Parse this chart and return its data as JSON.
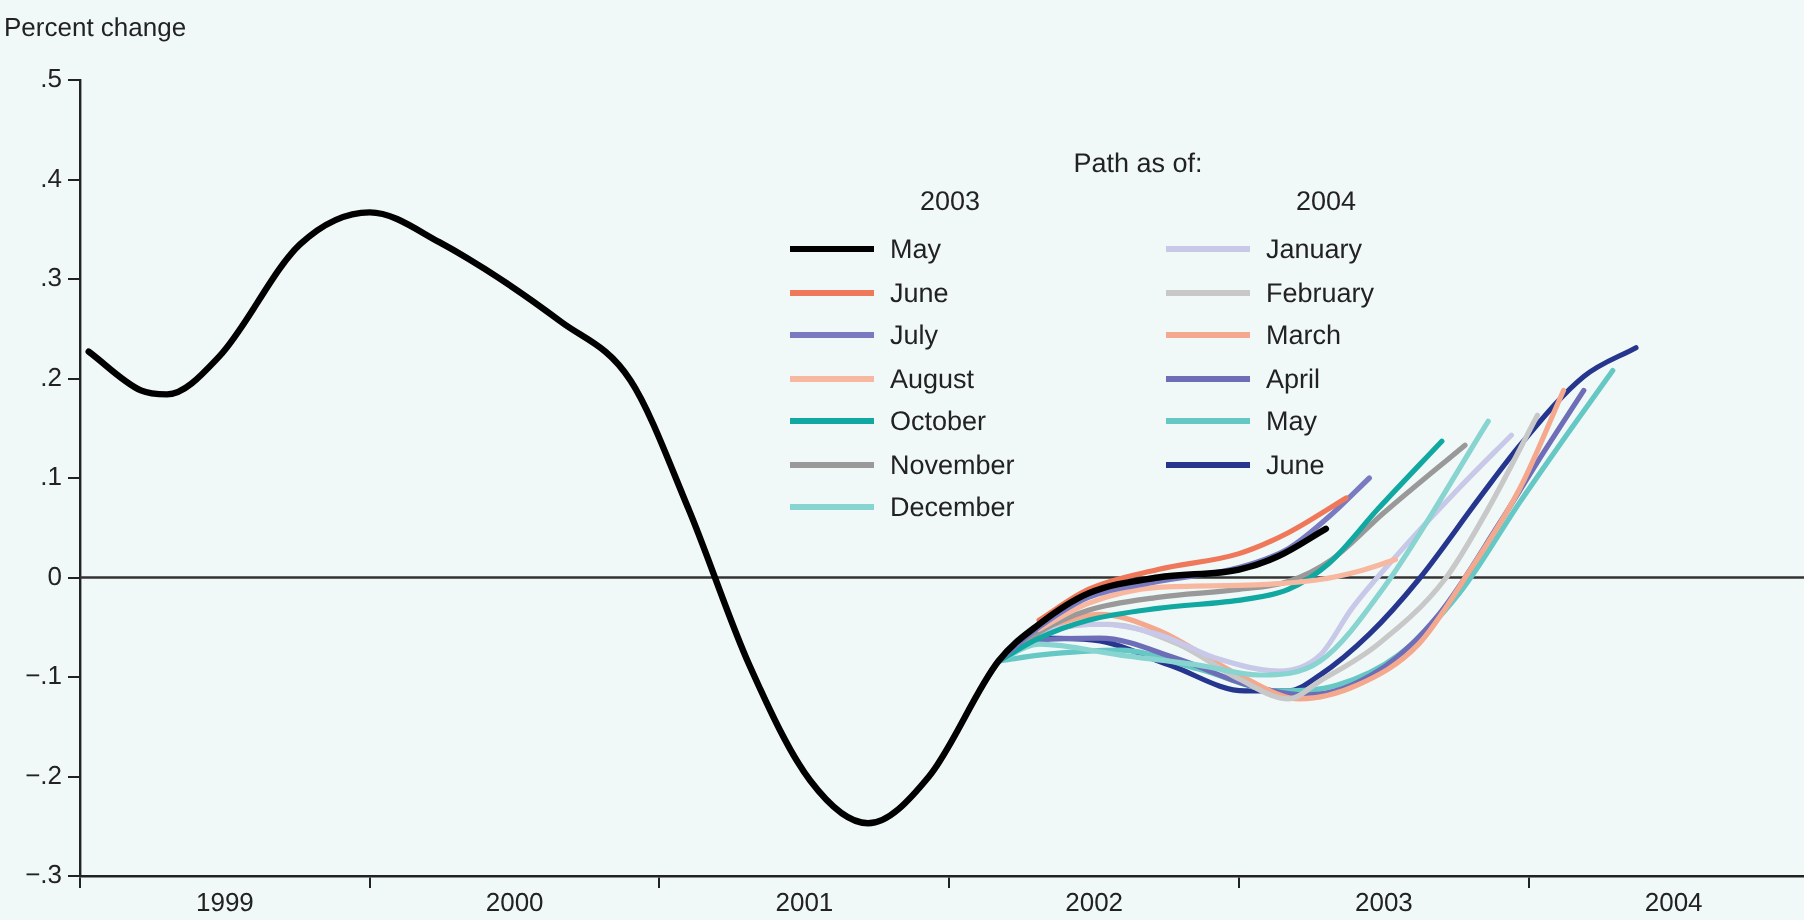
{
  "chart_data": {
    "type": "line",
    "ylabel": "Percent change",
    "legend_title": "Path as of:",
    "annotations": [
      "2003",
      "2004"
    ],
    "legend": "top",
    "grid": false,
    "marker": "none",
    "line_style": "solid",
    "xlim": [
      1999,
      2004.95
    ],
    "xticks": [
      {
        "value": 1999,
        "label": null
      },
      {
        "value": 1999.5,
        "label": "1999"
      },
      {
        "value": 2000,
        "label": null
      },
      {
        "value": 2000.5,
        "label": "2000"
      },
      {
        "value": 2001,
        "label": null
      },
      {
        "value": 2001.5,
        "label": "2001"
      },
      {
        "value": 2002,
        "label": null
      },
      {
        "value": 2002.5,
        "label": "2002"
      },
      {
        "value": 2003,
        "label": null
      },
      {
        "value": 2003.5,
        "label": "2003"
      },
      {
        "value": 2004,
        "label": null
      },
      {
        "value": 2004.5,
        "label": "2004"
      }
    ],
    "ylim": [
      -0.3,
      0.5
    ],
    "yticks": [
      {
        "value": -0.3,
        "label": "−.3"
      },
      {
        "value": -0.2,
        "label": "−.2"
      },
      {
        "value": -0.1,
        "label": "−.1"
      },
      0,
      {
        "value": 0.1,
        "label": ".1"
      },
      {
        "value": 0.2,
        "label": ".2"
      },
      {
        "value": 0.3,
        "label": ".3"
      },
      {
        "value": 0.4,
        "label": ".4"
      },
      {
        "value": 0.5,
        "label": ".5"
      }
    ],
    "ref_lines": [
      {
        "axis": "y",
        "value": 0,
        "color": "#333333"
      }
    ],
    "series": [
      {
        "name": "May",
        "color": "#000000",
        "x": [
          1999.03,
          1999.21,
          1999.3,
          1999.48,
          1999.76,
          2000.0,
          2000.24,
          2000.66,
          2000.9,
          2001.1,
          2001.31,
          2001.52,
          2001.72,
          2001.93,
          2002.17,
          2002.31,
          2002.48,
          2002.72,
          2003.0,
          2003.14,
          2003.3
        ],
        "values": [
          0.227,
          0.188,
          0.184,
          0.222,
          0.335,
          0.367,
          0.337,
          0.257,
          0.198,
          0.069,
          -0.088,
          -0.204,
          -0.247,
          -0.2,
          -0.084,
          -0.047,
          -0.016,
          0,
          0.008,
          0.022,
          0.049
        ]
      },
      {
        "name": "June",
        "color": "#f0785a",
        "x": [
          2002.31,
          2002.48,
          2002.72,
          2003.0,
          2003.17,
          2003.37
        ],
        "values": [
          -0.043,
          -0.012,
          0.008,
          0.024,
          0.045,
          0.08
        ]
      },
      {
        "name": "July",
        "color": "#7a7ac0",
        "x": [
          2002.17,
          2002.31,
          2002.48,
          2002.72,
          2003.0,
          2003.17,
          2003.31,
          2003.45
        ],
        "values": [
          -0.084,
          -0.05,
          -0.02,
          -0.004,
          0.01,
          0.029,
          0.061,
          0.1
        ]
      },
      {
        "name": "August",
        "color": "#f8b8a0",
        "x": [
          2002.31,
          2002.48,
          2002.72,
          2003.0,
          2003.28,
          2003.41,
          2003.54
        ],
        "values": [
          -0.052,
          -0.026,
          -0.01,
          -0.008,
          -0.002,
          0.006,
          0.018
        ]
      },
      {
        "name": "October",
        "color": "#10a8a0",
        "x": [
          2002.17,
          2002.31,
          2002.48,
          2002.72,
          2003.02,
          2003.17,
          2003.31,
          2003.48,
          2003.7
        ],
        "values": [
          -0.084,
          -0.061,
          -0.043,
          -0.031,
          -0.022,
          -0.012,
          0.014,
          0.069,
          0.137
        ]
      },
      {
        "name": "November",
        "color": "#999999",
        "x": [
          2002.17,
          2002.31,
          2002.48,
          2002.72,
          2003.0,
          2003.17,
          2003.32,
          2003.5,
          2003.78
        ],
        "values": [
          -0.084,
          -0.055,
          -0.033,
          -0.02,
          -0.012,
          -0.004,
          0.018,
          0.065,
          0.133
        ]
      },
      {
        "name": "December",
        "color": "#88d4d0",
        "x": [
          2002.17,
          2002.31,
          2002.59,
          2002.86,
          2003.07,
          2003.28,
          2003.5,
          2003.86
        ],
        "values": [
          -0.084,
          -0.067,
          -0.078,
          -0.088,
          -0.098,
          -0.084,
          -0.01,
          0.157
        ]
      },
      {
        "name": "January",
        "color": "#c8c8e8",
        "x": [
          2002.17,
          2002.31,
          2002.52,
          2002.72,
          2002.93,
          2003.14,
          2003.28,
          2003.39,
          2003.55,
          2003.76,
          2003.94
        ],
        "values": [
          -0.084,
          -0.057,
          -0.047,
          -0.057,
          -0.082,
          -0.094,
          -0.078,
          -0.031,
          0.024,
          0.09,
          0.143
        ]
      },
      {
        "name": "February",
        "color": "#c8c8c8",
        "x": [
          2002.17,
          2002.31,
          2002.55,
          2002.79,
          2003.0,
          2003.17,
          2003.28,
          2003.48,
          2003.71,
          2003.86,
          2004.03
        ],
        "values": [
          -0.084,
          -0.057,
          -0.047,
          -0.067,
          -0.102,
          -0.122,
          -0.104,
          -0.067,
          -0.002,
          0.069,
          0.163
        ]
      },
      {
        "name": "March",
        "color": "#f4a88e",
        "x": [
          2002.31,
          2002.52,
          2002.72,
          2003.0,
          2003.21,
          2003.41,
          2003.62,
          2003.79,
          2003.97,
          2004.12
        ],
        "values": [
          -0.053,
          -0.037,
          -0.053,
          -0.098,
          -0.122,
          -0.108,
          -0.067,
          0.004,
          0.09,
          0.188
        ]
      },
      {
        "name": "April",
        "color": "#6e6eb8",
        "x": [
          2002.17,
          2002.31,
          2002.52,
          2002.79,
          2003.03,
          2003.24,
          2003.48,
          2003.69,
          2003.9,
          2004.03,
          2004.19
        ],
        "values": [
          -0.084,
          -0.063,
          -0.061,
          -0.082,
          -0.108,
          -0.118,
          -0.094,
          -0.037,
          0.055,
          0.116,
          0.188
        ]
      },
      {
        "name": "May",
        "color": "#66c8c4",
        "x": [
          2002.17,
          2002.31,
          2002.59,
          2002.86,
          2003.14,
          2003.34,
          2003.55,
          2003.76,
          2003.97,
          2004.14,
          2004.29
        ],
        "values": [
          -0.084,
          -0.078,
          -0.073,
          -0.092,
          -0.114,
          -0.108,
          -0.078,
          -0.016,
          0.076,
          0.147,
          0.208
        ]
      },
      {
        "name": "June",
        "color": "#26368e",
        "x": [
          2002.17,
          2002.31,
          2002.5,
          2002.76,
          2003.02,
          2003.17,
          2003.28,
          2003.45,
          2003.62,
          2003.83,
          2003.97,
          2004.19,
          2004.37
        ],
        "values": [
          -0.084,
          -0.061,
          -0.063,
          -0.088,
          -0.114,
          -0.114,
          -0.098,
          -0.057,
          -0.002,
          0.08,
          0.133,
          0.202,
          0.231
        ]
      }
    ]
  }
}
